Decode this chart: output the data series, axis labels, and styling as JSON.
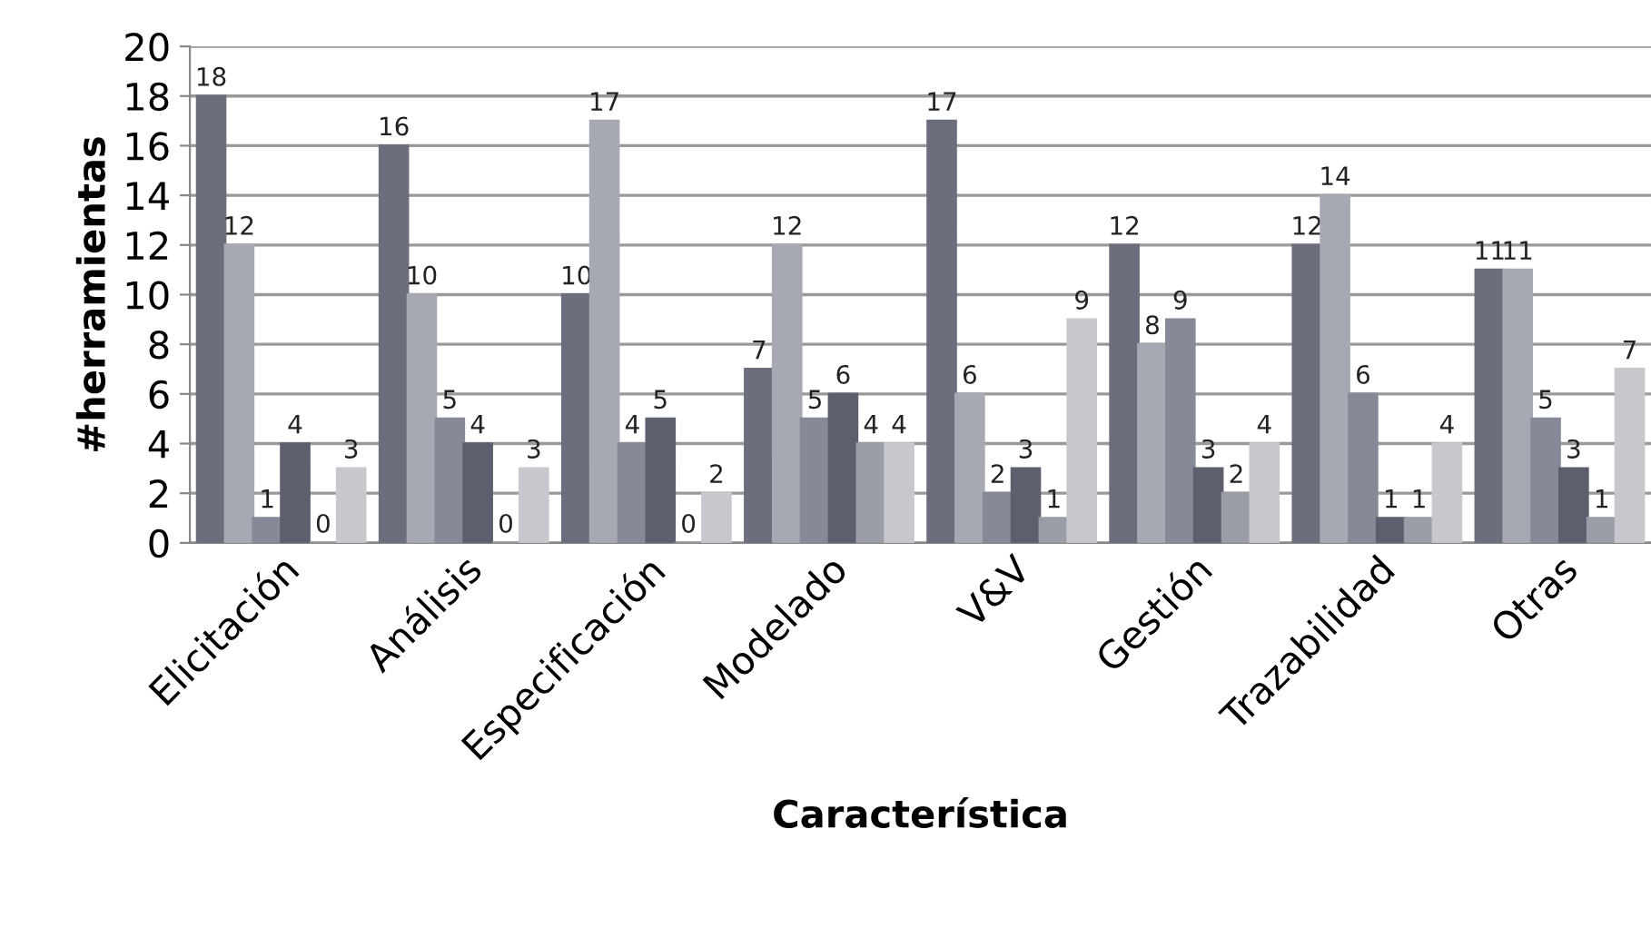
{
  "chart_data": {
    "type": "bar",
    "xlabel": "Característica",
    "ylabel": "#herramientas",
    "categories": [
      "Elicitación",
      "Análisis",
      "Especificación",
      "Modelado",
      "V&V",
      "Gestión",
      "Trazabilidad",
      "Otras"
    ],
    "series": [
      {
        "color": "#6b6e7d",
        "values": [
          18,
          16,
          10,
          7,
          17,
          12,
          12,
          11
        ]
      },
      {
        "color": "#a7a9b2",
        "values": [
          12,
          10,
          17,
          12,
          6,
          8,
          14,
          11
        ]
      },
      {
        "color": "#868997",
        "values": [
          1,
          5,
          4,
          5,
          2,
          9,
          6,
          5
        ]
      },
      {
        "color": "#5c5f6e",
        "values": [
          4,
          4,
          5,
          6,
          3,
          3,
          1,
          3
        ]
      },
      {
        "color": "#9a9ca6",
        "values": [
          0,
          0,
          0,
          4,
          1,
          2,
          1,
          1
        ]
      },
      {
        "color": "#c7c8ce",
        "values": [
          3,
          3,
          2,
          4,
          9,
          4,
          4,
          7
        ]
      }
    ],
    "ylim": [
      0,
      20
    ],
    "yticks": [
      0,
      2,
      4,
      6,
      8,
      10,
      12,
      14,
      16,
      18,
      20
    ],
    "grid": "y",
    "data_labels": true,
    "legend": false
  }
}
